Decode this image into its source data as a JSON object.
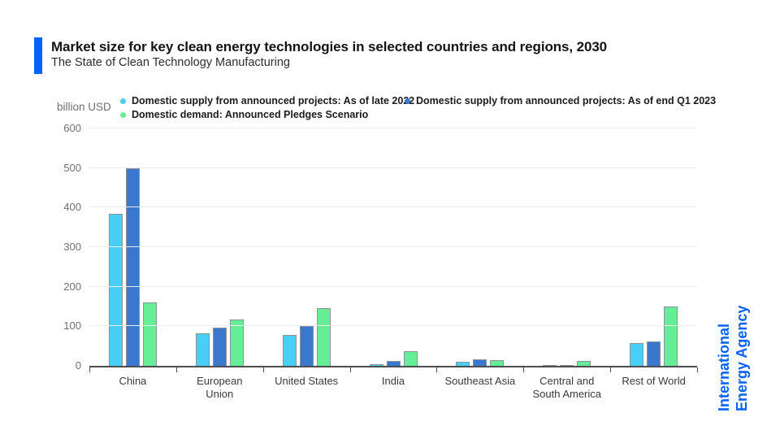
{
  "header": {
    "title": "Market size for key clean energy technologies in selected countries and regions, 2030",
    "subtitle": "The State of Clean Technology Manufacturing"
  },
  "unit_label": "billion USD",
  "logo": {
    "line1": "International",
    "line2": "Energy Agency"
  },
  "colors": {
    "accent": "#0561FB",
    "grid": "#EDEDEE",
    "axis": "#4D4E50",
    "bar_border": "#8A929A"
  },
  "chart_data": {
    "type": "bar",
    "title": "Market size for key clean energy technologies in selected countries and regions, 2030",
    "subtitle": "The State of Clean Technology Manufacturing",
    "categories": [
      "China",
      "European Union",
      "United States",
      "India",
      "Southeast Asia",
      "Central and South America",
      "Rest of World"
    ],
    "series": [
      {
        "name": "Domestic supply from announced projects: As of late 2022",
        "color": "#49CFF5",
        "values": [
          385,
          82,
          78,
          5,
          10,
          3,
          57
        ]
      },
      {
        "name": "Domestic supply from announced projects: As of end Q1 2023",
        "color": "#3A78CE",
        "values": [
          500,
          96,
          100,
          12,
          16,
          3,
          62
        ]
      },
      {
        "name": "Domestic demand: Announced Pledges Scenario",
        "color": "#66EE96",
        "values": [
          160,
          118,
          146,
          37,
          15,
          13,
          150
        ]
      }
    ],
    "xlabel": "",
    "ylabel": "billion USD",
    "ylim": [
      0,
      600
    ],
    "yticks": [
      0,
      100,
      200,
      300,
      400,
      500,
      600
    ],
    "grid": true,
    "legend_position": "top"
  }
}
